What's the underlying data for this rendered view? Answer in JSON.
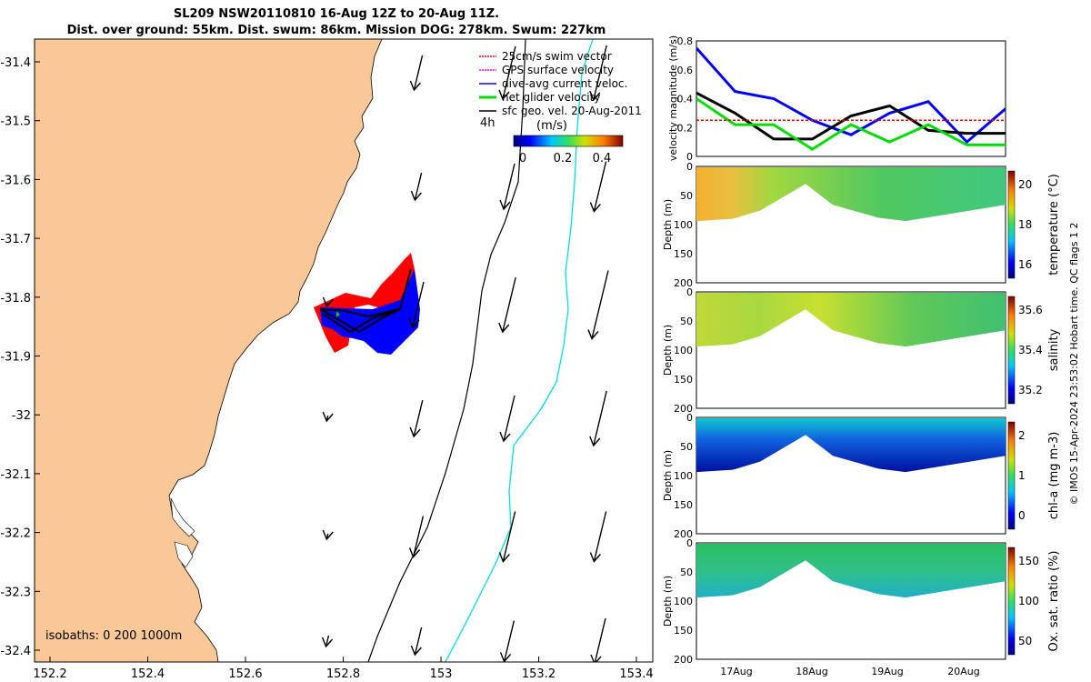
{
  "title": {
    "line1": "SL209 NSW20110810 16-Aug 12Z to 20-Aug 11Z.",
    "line2": "Dist. over ground: 55km. Dist. swum: 86km. Mission DOG: 278km. Swum: 227km"
  },
  "map": {
    "x_ticks": [
      "152.2",
      "152.4",
      "152.6",
      "152.8",
      "153",
      "153.2",
      "153.4"
    ],
    "y_ticks": [
      "-31.4",
      "-31.5",
      "-31.6",
      "-31.7",
      "-31.8",
      "-31.9",
      "-32",
      "-32.1",
      "-32.2",
      "-32.3",
      "-32.4"
    ],
    "isobaths_label": "isobaths: 0   200  1000m",
    "legend": [
      {
        "label": "25cm/s swim vector",
        "color": "#ff0000"
      },
      {
        "label": "GPS surface velocity",
        "color": "#ff00ff"
      },
      {
        "label": "dive-avg current veloc.",
        "color": "#0000ff"
      },
      {
        "label": "net glider velocity",
        "color": "#00dd00"
      },
      {
        "label": "sfc geo. vel. 20-Aug-2011",
        "color": "#000000"
      }
    ],
    "time_label": "4h",
    "colorbar_label": "(m/s)",
    "colorbar_ticks": [
      "0",
      "0.2",
      "0.4"
    ],
    "land_color": "#f9c896",
    "track_colors": {
      "red": "#ff0000",
      "blue": "#0000ff"
    }
  },
  "chart_data": [
    {
      "type": "line",
      "ylabel": "velocity magnitude (m/s)",
      "ylim": [
        0,
        0.8
      ],
      "y_ticks": [
        "0",
        "0.2",
        "0.4",
        "0.6",
        "0.8"
      ],
      "x": [
        "16-Aug 12Z",
        "17-Aug 00Z",
        "17-Aug 12Z",
        "18-Aug 00Z",
        "18-Aug 12Z",
        "19-Aug 00Z",
        "19-Aug 12Z",
        "20-Aug 00Z",
        "20-Aug 11Z"
      ],
      "series": [
        {
          "color": "#0000ff",
          "values": [
            0.75,
            0.45,
            0.4,
            0.25,
            0.15,
            0.3,
            0.38,
            0.1,
            0.33
          ]
        },
        {
          "color": "#000000",
          "values": [
            0.44,
            0.3,
            0.12,
            0.12,
            0.28,
            0.35,
            0.18,
            0.16,
            0.16
          ]
        },
        {
          "color": "#00dd00",
          "values": [
            0.4,
            0.22,
            0.22,
            0.05,
            0.22,
            0.1,
            0.22,
            0.08,
            0.08
          ]
        },
        {
          "color": "#ff0000",
          "values": [
            0.25,
            0.25,
            0.25,
            0.25,
            0.25,
            0.25,
            0.25,
            0.25,
            0.25
          ]
        }
      ]
    },
    {
      "type": "heatmap",
      "ylabel": "Depth (m)",
      "cbar_label": "temperature (°C)",
      "cbar_ticks": [
        "16",
        "18",
        "20"
      ],
      "ylim": [
        200,
        0
      ],
      "y_ticks": [
        "0",
        "50",
        "100",
        "150",
        "200"
      ]
    },
    {
      "type": "heatmap",
      "ylabel": "Depth (m)",
      "cbar_label": "salinity",
      "cbar_ticks": [
        "35.2",
        "35.4",
        "35.6"
      ],
      "ylim": [
        200,
        0
      ],
      "y_ticks": [
        "0",
        "50",
        "100",
        "150",
        "200"
      ]
    },
    {
      "type": "heatmap",
      "ylabel": "Depth (m)",
      "cbar_label": "chl-a (mg m-3)",
      "cbar_ticks": [
        "0",
        "1",
        "2"
      ],
      "ylim": [
        200,
        0
      ],
      "y_ticks": [
        "0",
        "50",
        "100",
        "150",
        "200"
      ]
    },
    {
      "type": "heatmap",
      "ylabel": "Depth (m)",
      "cbar_label": "Ox. sat. ratio (%)",
      "cbar_ticks": [
        "50",
        "100",
        "150"
      ],
      "ylim": [
        200,
        0
      ],
      "y_ticks": [
        "0",
        "50",
        "100",
        "150",
        "200"
      ],
      "x_ticks": [
        "17Aug",
        "18Aug",
        "19Aug",
        "20Aug"
      ]
    }
  ],
  "credit": "© IMOS 15-Apr-2024 23:53:02 Hobart time. QC flags 1  2"
}
